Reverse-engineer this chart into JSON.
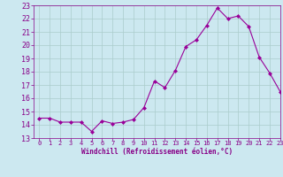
{
  "x": [
    0,
    1,
    2,
    3,
    4,
    5,
    6,
    7,
    8,
    9,
    10,
    11,
    12,
    13,
    14,
    15,
    16,
    17,
    18,
    19,
    20,
    21,
    22,
    23
  ],
  "y": [
    14.5,
    14.5,
    14.2,
    14.2,
    14.2,
    13.5,
    14.3,
    14.1,
    14.2,
    14.4,
    15.3,
    17.3,
    16.8,
    18.1,
    19.9,
    20.4,
    21.5,
    22.8,
    22.0,
    22.2,
    21.4,
    19.1,
    17.9,
    16.5
  ],
  "line_color": "#990099",
  "marker": "D",
  "marker_size": 2.0,
  "bg_color": "#cce8f0",
  "grid_color": "#aacccc",
  "xlabel": "Windchill (Refroidissement éolien,°C)",
  "xlabel_color": "#880088",
  "tick_color": "#880088",
  "ylim": [
    13,
    23
  ],
  "xlim": [
    -0.5,
    23
  ],
  "yticks": [
    13,
    14,
    15,
    16,
    17,
    18,
    19,
    20,
    21,
    22,
    23
  ],
  "xticks": [
    0,
    1,
    2,
    3,
    4,
    5,
    6,
    7,
    8,
    9,
    10,
    11,
    12,
    13,
    14,
    15,
    16,
    17,
    18,
    19,
    20,
    21,
    22,
    23
  ]
}
